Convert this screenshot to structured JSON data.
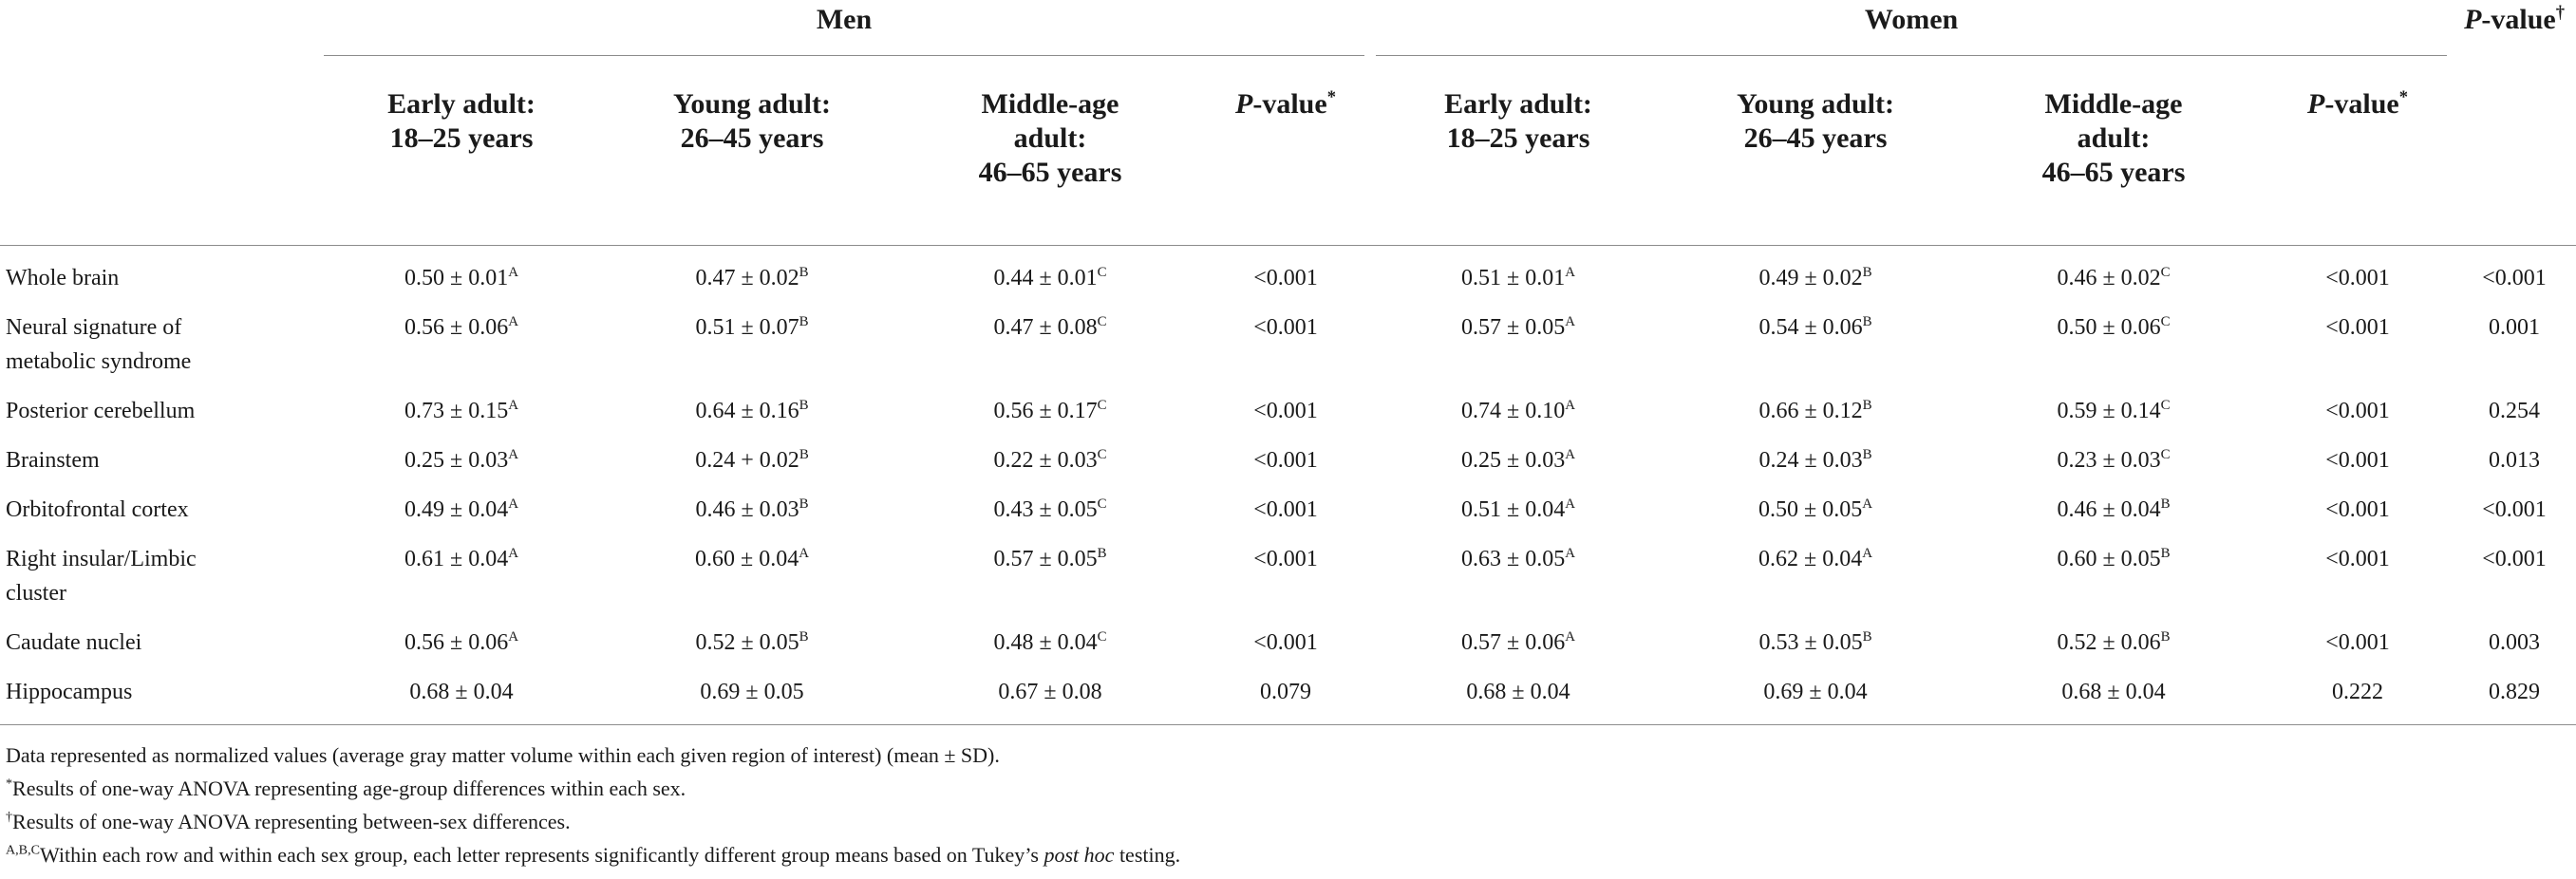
{
  "header": {
    "groups": [
      {
        "label": "Men"
      },
      {
        "label": "Women"
      }
    ],
    "between_sex_pvalue": {
      "main": "P",
      "rest": "-value",
      "mark": "†"
    },
    "men_subheaders": [
      {
        "line1": "Early adult:",
        "line2": "18–25 years",
        "line3": ""
      },
      {
        "line1": "Young adult:",
        "line2": "26–45 years",
        "line3": ""
      },
      {
        "line1": "Middle-age",
        "line2": "adult:",
        "line3": "46–65 years"
      }
    ],
    "women_subheaders": [
      {
        "line1": "Early adult:",
        "line2": "18–25 years",
        "line3": ""
      },
      {
        "line1": "Young adult:",
        "line2": "26–45 years",
        "line3": ""
      },
      {
        "line1": "Middle-age",
        "line2": "adult:",
        "line3": "46–65 years"
      }
    ],
    "within_pvalue": {
      "main": "P",
      "rest": "-value",
      "mark": "*"
    }
  },
  "rows": [
    {
      "label": [
        "Whole brain"
      ],
      "men": [
        {
          "v": "0.50 ± 0.01",
          "s": "A"
        },
        {
          "v": "0.47 ± 0.02",
          "s": "B"
        },
        {
          "v": "0.44 ± 0.01",
          "s": "C"
        }
      ],
      "men_p": "<0.001",
      "women": [
        {
          "v": "0.51 ± 0.01",
          "s": "A"
        },
        {
          "v": "0.49 ± 0.02",
          "s": "B"
        },
        {
          "v": "0.46 ± 0.02",
          "s": "C"
        }
      ],
      "women_p": "<0.001",
      "sex_p": "<0.001"
    },
    {
      "label": [
        "Neural signature of",
        "metabolic syndrome"
      ],
      "men": [
        {
          "v": "0.56 ± 0.06",
          "s": "A"
        },
        {
          "v": "0.51 ± 0.07",
          "s": "B"
        },
        {
          "v": "0.47 ± 0.08",
          "s": "C"
        }
      ],
      "men_p": "<0.001",
      "women": [
        {
          "v": "0.57 ± 0.05",
          "s": "A"
        },
        {
          "v": "0.54 ± 0.06",
          "s": "B"
        },
        {
          "v": "0.50 ± 0.06",
          "s": "C"
        }
      ],
      "women_p": "<0.001",
      "sex_p": "0.001"
    },
    {
      "label": [
        "Posterior cerebellum"
      ],
      "men": [
        {
          "v": "0.73 ± 0.15",
          "s": "A"
        },
        {
          "v": "0.64 ± 0.16",
          "s": "B"
        },
        {
          "v": "0.56 ± 0.17",
          "s": "C"
        }
      ],
      "men_p": "<0.001",
      "women": [
        {
          "v": "0.74 ± 0.10",
          "s": "A"
        },
        {
          "v": "0.66 ± 0.12",
          "s": "B"
        },
        {
          "v": "0.59 ± 0.14",
          "s": "C"
        }
      ],
      "women_p": "<0.001",
      "sex_p": "0.254"
    },
    {
      "label": [
        "Brainstem"
      ],
      "men": [
        {
          "v": "0.25 ± 0.03",
          "s": "A"
        },
        {
          "v": "0.24 + 0.02",
          "s": "B"
        },
        {
          "v": "0.22 ± 0.03",
          "s": "C"
        }
      ],
      "men_p": "<0.001",
      "women": [
        {
          "v": "0.25 ± 0.03",
          "s": "A"
        },
        {
          "v": "0.24 ± 0.03",
          "s": "B"
        },
        {
          "v": "0.23 ± 0.03",
          "s": "C"
        }
      ],
      "women_p": "<0.001",
      "sex_p": "0.013"
    },
    {
      "label": [
        "Orbitofrontal cortex"
      ],
      "men": [
        {
          "v": "0.49 ± 0.04",
          "s": "A"
        },
        {
          "v": "0.46 ± 0.03",
          "s": "B"
        },
        {
          "v": "0.43 ± 0.05",
          "s": "C"
        }
      ],
      "men_p": "<0.001",
      "women": [
        {
          "v": "0.51 ± 0.04",
          "s": "A"
        },
        {
          "v": "0.50 ± 0.05",
          "s": "A"
        },
        {
          "v": "0.46 ± 0.04",
          "s": "B"
        }
      ],
      "women_p": "<0.001",
      "sex_p": "<0.001"
    },
    {
      "label": [
        "Right insular/Limbic",
        "cluster"
      ],
      "men": [
        {
          "v": "0.61 ± 0.04",
          "s": "A"
        },
        {
          "v": "0.60 ± 0.04",
          "s": "A"
        },
        {
          "v": "0.57 ± 0.05",
          "s": "B"
        }
      ],
      "men_p": "<0.001",
      "women": [
        {
          "v": "0.63 ± 0.05",
          "s": "A"
        },
        {
          "v": "0.62 ± 0.04",
          "s": "A"
        },
        {
          "v": "0.60 ± 0.05",
          "s": "B"
        }
      ],
      "women_p": "<0.001",
      "sex_p": "<0.001"
    },
    {
      "label": [
        "Caudate nuclei"
      ],
      "men": [
        {
          "v": "0.56 ± 0.06",
          "s": "A"
        },
        {
          "v": "0.52 ± 0.05",
          "s": "B"
        },
        {
          "v": "0.48 ± 0.04",
          "s": "C"
        }
      ],
      "men_p": "<0.001",
      "women": [
        {
          "v": "0.57 ± 0.06",
          "s": "A"
        },
        {
          "v": "0.53 ± 0.05",
          "s": "B"
        },
        {
          "v": "0.52 ± 0.06",
          "s": "B"
        }
      ],
      "women_p": "<0.001",
      "sex_p": "0.003"
    },
    {
      "label": [
        "Hippocampus"
      ],
      "men": [
        {
          "v": "0.68 ± 0.04",
          "s": ""
        },
        {
          "v": "0.69 ± 0.05",
          "s": ""
        },
        {
          "v": "0.67 ± 0.08",
          "s": ""
        }
      ],
      "men_p": "0.079",
      "women": [
        {
          "v": "0.68 ± 0.04",
          "s": ""
        },
        {
          "v": "0.69 ± 0.04",
          "s": ""
        },
        {
          "v": "0.68 ± 0.04",
          "s": ""
        }
      ],
      "women_p": "0.222",
      "sex_p": "0.829"
    }
  ],
  "notes": {
    "n1": "Data represented as normalized values (average gray matter volume within each given region of interest) (mean ± SD).",
    "n2_mark": "*",
    "n2": "Results of one-way ANOVA representing age-group differences within each sex.",
    "n3_mark": "†",
    "n3": "Results of one-way ANOVA representing between-sex differences.",
    "n4_mark": "A,B,C",
    "n4_a": "Within each row and within each sex group, each letter represents significantly different group means based on Tukey’s ",
    "n4_ital": "post hoc",
    "n4_b": " testing."
  }
}
